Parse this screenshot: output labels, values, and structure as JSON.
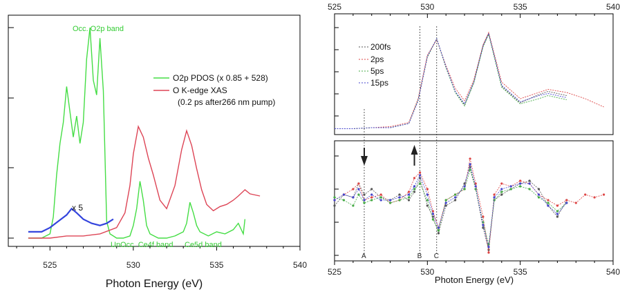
{
  "chart_data": [
    {
      "type": "line",
      "xlabel": "Photon Energy (eV)",
      "ylabel": "",
      "xlim": [
        522.5,
        540
      ],
      "ylim": [
        0,
        1
      ],
      "x_ticks": [
        525,
        530,
        535,
        540
      ],
      "legend": {
        "placement": "top-right",
        "entries": [
          {
            "label": "O2p PDOS (x 0.85 + 528)",
            "color": "#44dd44"
          },
          {
            "label": "O K-edge XAS",
            "color": "#dd4455"
          }
        ],
        "note": "(0.2 ps after266 nm pump)"
      },
      "annotations": [
        {
          "text": "Occ. O2p band",
          "x": 526.5,
          "y": 1.0
        },
        {
          "text": "UnOcc. Ce4f band",
          "x": 529.5,
          "y": -0.04
        },
        {
          "text": "Ce5d band",
          "x": 534.0,
          "y": -0.04
        },
        {
          "text": "x 5",
          "x": 526.3,
          "y": 0.15
        }
      ],
      "series": [
        {
          "name": "O2p PDOS (x 0.85 + 528)",
          "color": "#44dd44",
          "x": [
            523.7,
            524.5,
            525.0,
            525.2,
            525.4,
            525.6,
            525.8,
            526.0,
            526.2,
            526.4,
            526.6,
            526.8,
            527.0,
            527.2,
            527.4,
            527.6,
            527.8,
            528.0,
            528.2,
            528.4,
            528.6,
            528.8,
            529.0,
            529.4,
            529.8,
            530.0,
            530.2,
            530.4,
            530.6,
            530.8,
            531.0,
            531.5,
            532.0,
            532.5,
            533.0,
            533.2,
            533.4,
            533.6,
            533.8,
            534.0,
            534.5,
            535.0,
            535.5,
            536.0,
            536.3,
            536.6,
            536.7
          ],
          "y": [
            0.0,
            0.0,
            0.02,
            0.1,
            0.3,
            0.45,
            0.55,
            0.72,
            0.6,
            0.48,
            0.58,
            0.45,
            0.55,
            0.85,
            1.0,
            0.75,
            0.68,
            0.95,
            0.7,
            0.08,
            0.02,
            0.01,
            0.0,
            0.0,
            0.01,
            0.06,
            0.14,
            0.27,
            0.18,
            0.06,
            0.02,
            0.0,
            0.0,
            0.01,
            0.03,
            0.07,
            0.17,
            0.12,
            0.06,
            0.03,
            0.01,
            0.03,
            0.02,
            0.04,
            0.07,
            0.02,
            0.09
          ]
        },
        {
          "name": "O K-edge XAS",
          "color": "#dd4455",
          "x": [
            523.7,
            525.0,
            526.0,
            527.0,
            528.0,
            529.0,
            529.5,
            529.8,
            530.0,
            530.3,
            530.6,
            530.9,
            531.2,
            531.6,
            532.0,
            532.5,
            532.9,
            533.2,
            533.5,
            533.8,
            534.1,
            534.4,
            534.8,
            535.2,
            535.6,
            536.0,
            536.3,
            536.7,
            537.0,
            537.6
          ],
          "y": [
            0.0,
            0.0,
            0.01,
            0.01,
            0.02,
            0.05,
            0.12,
            0.25,
            0.4,
            0.53,
            0.48,
            0.38,
            0.3,
            0.18,
            0.14,
            0.25,
            0.42,
            0.51,
            0.44,
            0.33,
            0.23,
            0.16,
            0.13,
            0.15,
            0.16,
            0.18,
            0.2,
            0.23,
            0.21,
            0.2
          ]
        },
        {
          "name": "x 5",
          "color": "#3344dd",
          "x": [
            523.7,
            524.5,
            525.0,
            525.5,
            526.0,
            526.3,
            526.6,
            527.0,
            527.5,
            528.0,
            528.4,
            528.8
          ],
          "y": [
            0.03,
            0.03,
            0.05,
            0.08,
            0.11,
            0.14,
            0.12,
            0.09,
            0.07,
            0.06,
            0.07,
            0.09
          ]
        }
      ]
    },
    {
      "type": "line",
      "title": "",
      "xlim": [
        525,
        540
      ],
      "x_ticks": [
        525,
        530,
        535,
        540
      ],
      "top_x_ticks": [
        525,
        530,
        535,
        540
      ],
      "xlabel": "Photon Energy (eV)",
      "legend": {
        "placement": "top-left",
        "entries": [
          {
            "label": "200fs",
            "color": "#555555"
          },
          {
            "label": "2ps",
            "color": "#dd4444"
          },
          {
            "label": "5ps",
            "color": "#44aa44"
          },
          {
            "label": "15ps",
            "color": "#4444cc"
          }
        ]
      },
      "markers": [
        {
          "label": "A",
          "x": 526.6
        },
        {
          "label": "B",
          "x": 529.6
        },
        {
          "label": "C",
          "x": 530.5
        }
      ],
      "arrows": [
        {
          "x": 526.6,
          "direction": "down"
        },
        {
          "x": 529.3,
          "direction": "up"
        }
      ],
      "upper_panel": {
        "ylim": [
          0,
          1
        ],
        "series": [
          {
            "name": "200fs",
            "color": "#555555",
            "x": [
              525,
              526,
              527,
              528,
              529,
              529.5,
              530,
              530.5,
              531,
              531.5,
              532,
              532.5,
              533,
              533.3,
              534,
              535,
              536,
              536.5,
              537.5
            ],
            "y": [
              0.01,
              0.01,
              0.02,
              0.02,
              0.06,
              0.28,
              0.7,
              0.88,
              0.6,
              0.37,
              0.24,
              0.46,
              0.82,
              0.93,
              0.42,
              0.26,
              0.34,
              0.37,
              0.33
            ]
          },
          {
            "name": "2ps",
            "color": "#dd4444",
            "x": [
              525,
              526,
              527,
              528,
              529,
              529.5,
              530,
              530.5,
              531,
              531.5,
              532,
              532.5,
              533,
              533.3,
              534,
              535,
              536,
              536.5,
              537.5,
              538.5,
              539.5
            ],
            "y": [
              0.01,
              0.01,
              0.02,
              0.03,
              0.07,
              0.3,
              0.72,
              0.87,
              0.62,
              0.4,
              0.28,
              0.48,
              0.82,
              0.94,
              0.46,
              0.3,
              0.36,
              0.39,
              0.36,
              0.3,
              0.22
            ]
          },
          {
            "name": "5ps",
            "color": "#44aa44",
            "x": [
              525,
              526,
              527,
              528,
              529,
              529.5,
              530,
              530.5,
              531,
              531.5,
              532,
              532.5,
              533,
              533.3,
              534,
              535,
              536,
              536.5,
              537.5
            ],
            "y": [
              0.01,
              0.01,
              0.02,
              0.02,
              0.06,
              0.29,
              0.7,
              0.88,
              0.6,
              0.36,
              0.23,
              0.45,
              0.8,
              0.92,
              0.41,
              0.25,
              0.3,
              0.33,
              0.29
            ]
          },
          {
            "name": "15ps",
            "color": "#4444cc",
            "x": [
              525,
              526,
              527,
              528,
              529,
              529.5,
              530,
              530.5,
              531,
              531.5,
              532,
              532.5,
              533,
              533.3,
              534,
              535,
              536,
              536.5,
              537.5
            ],
            "y": [
              0.01,
              0.01,
              0.02,
              0.02,
              0.06,
              0.28,
              0.71,
              0.88,
              0.61,
              0.37,
              0.25,
              0.46,
              0.81,
              0.93,
              0.43,
              0.27,
              0.33,
              0.35,
              0.31
            ]
          }
        ]
      },
      "lower_panel": {
        "ylim": [
          -1,
          1
        ],
        "series": [
          {
            "name": "200fs",
            "color": "#555555",
            "x": [
              525,
              525.5,
              526,
              526.3,
              526.6,
              527,
              527.5,
              528,
              528.5,
              529,
              529.3,
              529.6,
              530,
              530.3,
              530.6,
              531,
              531.5,
              532,
              532.3,
              532.6,
              533,
              533.3,
              533.6,
              534,
              534.5,
              535,
              535.5,
              536,
              536.5,
              537,
              537.5
            ],
            "y": [
              -0.1,
              0.1,
              0.05,
              0.3,
              0.1,
              0.2,
              0.05,
              0.0,
              0.1,
              0.0,
              0.15,
              0.4,
              -0.1,
              -0.3,
              -0.6,
              -0.1,
              0.0,
              0.3,
              0.6,
              0.2,
              -0.5,
              -0.9,
              0.0,
              0.1,
              0.2,
              0.3,
              0.35,
              0.2,
              -0.1,
              -0.3,
              0.0
            ]
          },
          {
            "name": "2ps",
            "color": "#dd4444",
            "x": [
              525,
              525.5,
              526,
              526.3,
              526.6,
              527,
              527.5,
              528,
              528.5,
              529,
              529.3,
              529.6,
              530,
              530.3,
              530.6,
              531,
              531.5,
              532,
              532.3,
              532.6,
              533,
              533.3,
              533.6,
              534,
              534.5,
              535,
              535.5,
              536,
              536.5,
              537,
              537.5,
              538,
              538.5,
              539,
              539.5
            ],
            "y": [
              0.0,
              0.1,
              0.2,
              0.3,
              0.0,
              0.05,
              0.1,
              -0.05,
              0.0,
              0.15,
              0.4,
              0.5,
              0.2,
              -0.2,
              -0.5,
              0.0,
              0.1,
              0.2,
              0.75,
              0.3,
              -0.3,
              -0.95,
              0.1,
              0.3,
              0.25,
              0.35,
              0.3,
              0.1,
              0.0,
              -0.1,
              0.0,
              -0.05,
              0.1,
              0.05,
              0.1
            ]
          },
          {
            "name": "5ps",
            "color": "#44aa44",
            "x": [
              525,
              525.5,
              526,
              526.3,
              526.6,
              527,
              527.5,
              528,
              528.5,
              529,
              529.3,
              529.6,
              530,
              530.3,
              530.6,
              531,
              531.5,
              532,
              532.3,
              532.6,
              533,
              533.3,
              533.6,
              534,
              534.5,
              535,
              535.5,
              536,
              536.5,
              537,
              537.5
            ],
            "y": [
              0.05,
              0.0,
              -0.1,
              0.1,
              -0.05,
              0.0,
              0.05,
              -0.05,
              0.0,
              0.05,
              0.2,
              0.3,
              0.0,
              -0.35,
              -0.55,
              0.0,
              0.1,
              0.2,
              0.55,
              0.2,
              -0.4,
              -0.8,
              0.0,
              0.15,
              0.2,
              0.25,
              0.2,
              0.05,
              -0.05,
              -0.2,
              -0.05
            ]
          },
          {
            "name": "15ps",
            "color": "#4444cc",
            "x": [
              525,
              525.5,
              526,
              526.3,
              526.6,
              527,
              527.5,
              528,
              528.5,
              529,
              529.3,
              529.6,
              530,
              530.3,
              530.6,
              531,
              531.5,
              532,
              532.3,
              532.6,
              533,
              533.3,
              533.6,
              534,
              534.5,
              535,
              535.5,
              536,
              536.5,
              537,
              537.5
            ],
            "y": [
              0.0,
              0.1,
              0.05,
              0.2,
              0.0,
              0.1,
              0.0,
              0.0,
              0.05,
              0.1,
              0.25,
              0.45,
              0.1,
              -0.25,
              -0.5,
              -0.05,
              0.05,
              0.25,
              0.65,
              0.25,
              -0.45,
              -0.85,
              0.05,
              0.2,
              0.25,
              0.3,
              0.3,
              0.1,
              -0.1,
              -0.25,
              -0.05
            ]
          }
        ]
      }
    }
  ]
}
